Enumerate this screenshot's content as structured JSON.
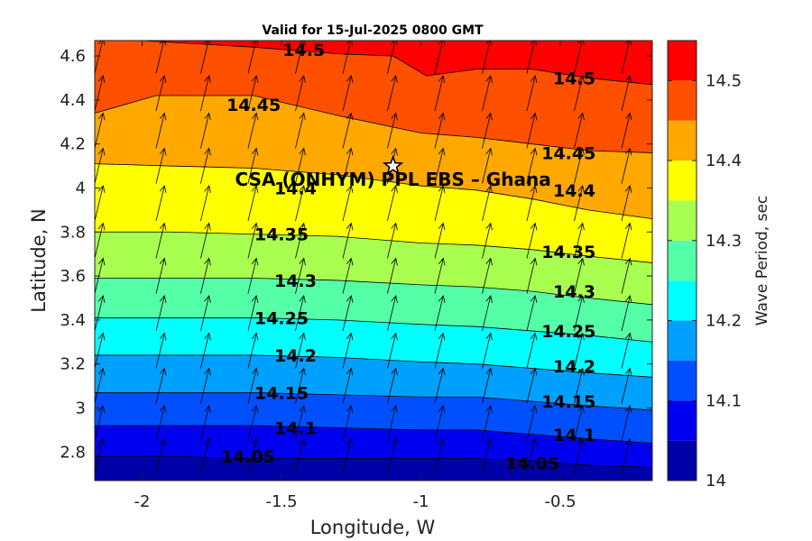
{
  "chart_data": {
    "type": "heatmap",
    "subtype": "filled-contour",
    "title": "Valid for 15-Jul-2025 0800 GMT",
    "xlabel": "Longitude, W",
    "ylabel": "Latitude, N",
    "xlim": [
      -2.17,
      -0.17
    ],
    "ylim": [
      2.67,
      4.67
    ],
    "x_ticks": [
      -2,
      -1.5,
      -1,
      -0.5
    ],
    "x_tick_labels": [
      "-2",
      "-1.5",
      "-1",
      "-0.5"
    ],
    "y_ticks": [
      2.8,
      3.0,
      3.2,
      3.4,
      3.6,
      3.8,
      4.0,
      4.2,
      4.4,
      4.6
    ],
    "y_tick_labels": [
      "2.8",
      "3",
      "3.2",
      "3.4",
      "3.6",
      "3.8",
      "4",
      "4.2",
      "4.4",
      "4.6"
    ],
    "colorbar": {
      "label": "Wave Period, sec",
      "range": [
        14.0,
        14.55
      ],
      "ticks": [
        14.0,
        14.1,
        14.2,
        14.3,
        14.4,
        14.5
      ],
      "tick_labels": [
        "14",
        "14.1",
        "14.2",
        "14.3",
        "14.4",
        "14.5"
      ],
      "levels": [
        14.0,
        14.05,
        14.1,
        14.15,
        14.2,
        14.25,
        14.3,
        14.35,
        14.4,
        14.45,
        14.5,
        14.55
      ],
      "colors": [
        "#0000a8",
        "#0000f0",
        "#0050ff",
        "#00a0ff",
        "#00ffff",
        "#55ffa8",
        "#a8ff50",
        "#ffff00",
        "#ffa800",
        "#ff5000",
        "#ff0000"
      ]
    },
    "contour_lines": [
      {
        "level": 14.05,
        "x": [
          -2.17,
          -1.9,
          -1.6,
          -1.3,
          -1.0,
          -0.8,
          -0.6,
          -0.4,
          -0.17
        ],
        "y": [
          2.78,
          2.78,
          2.77,
          2.77,
          2.77,
          2.77,
          2.76,
          2.74,
          2.73
        ]
      },
      {
        "level": 14.1,
        "x": [
          -2.17,
          -1.9,
          -1.6,
          -1.3,
          -1.0,
          -0.8,
          -0.6,
          -0.4,
          -0.17
        ],
        "y": [
          2.92,
          2.92,
          2.92,
          2.91,
          2.9,
          2.9,
          2.88,
          2.86,
          2.84
        ]
      },
      {
        "level": 14.15,
        "x": [
          -2.17,
          -1.9,
          -1.6,
          -1.3,
          -1.0,
          -0.8,
          -0.6,
          -0.4,
          -0.17
        ],
        "y": [
          3.07,
          3.07,
          3.07,
          3.06,
          3.05,
          3.05,
          3.03,
          3.01,
          2.99
        ]
      },
      {
        "level": 14.2,
        "x": [
          -2.17,
          -1.9,
          -1.6,
          -1.3,
          -1.0,
          -0.8,
          -0.6,
          -0.4,
          -0.17
        ],
        "y": [
          3.24,
          3.24,
          3.24,
          3.23,
          3.21,
          3.2,
          3.18,
          3.16,
          3.14
        ]
      },
      {
        "level": 14.25,
        "x": [
          -2.17,
          -1.9,
          -1.6,
          -1.3,
          -1.0,
          -0.8,
          -0.6,
          -0.4,
          -0.17
        ],
        "y": [
          3.41,
          3.41,
          3.41,
          3.4,
          3.38,
          3.37,
          3.35,
          3.33,
          3.3
        ]
      },
      {
        "level": 14.3,
        "x": [
          -2.17,
          -1.9,
          -1.6,
          -1.3,
          -1.0,
          -0.8,
          -0.6,
          -0.4,
          -0.17
        ],
        "y": [
          3.59,
          3.59,
          3.59,
          3.58,
          3.56,
          3.55,
          3.53,
          3.5,
          3.47
        ]
      },
      {
        "level": 14.35,
        "x": [
          -2.17,
          -1.9,
          -1.6,
          -1.3,
          -1.0,
          -0.8,
          -0.6,
          -0.4,
          -0.17
        ],
        "y": [
          3.8,
          3.8,
          3.79,
          3.78,
          3.75,
          3.74,
          3.72,
          3.69,
          3.66
        ]
      },
      {
        "level": 14.4,
        "x": [
          -2.17,
          -1.9,
          -1.6,
          -1.3,
          -1.0,
          -0.8,
          -0.6,
          -0.4,
          -0.17
        ],
        "y": [
          4.11,
          4.1,
          4.09,
          4.06,
          4.01,
          3.99,
          3.95,
          3.9,
          3.86
        ]
      },
      {
        "level": 14.45,
        "x": [
          -2.17,
          -1.95,
          -1.6,
          -1.3,
          -1.0,
          -0.8,
          -0.6,
          -0.4,
          -0.17
        ],
        "y": [
          4.34,
          4.42,
          4.42,
          4.33,
          4.25,
          4.23,
          4.2,
          4.17,
          4.16
        ]
      },
      {
        "level": 14.5,
        "x": [
          -2.0,
          -1.6,
          -1.3,
          -1.1,
          -0.98,
          -0.8,
          -0.6,
          -0.4,
          -0.17
        ],
        "y": [
          4.67,
          4.64,
          4.61,
          4.6,
          4.51,
          4.54,
          4.54,
          4.5,
          4.47
        ]
      }
    ],
    "contour_label_values": [
      "14.05",
      "14.1",
      "14.15",
      "14.2",
      "14.25",
      "14.3",
      "14.35",
      "14.4",
      "14.45",
      "14.5"
    ],
    "contour_labels": [
      {
        "text": "14.05",
        "x": -1.62,
        "y": 2.78
      },
      {
        "text": "14.05",
        "x": -0.6,
        "y": 2.75
      },
      {
        "text": "14.1",
        "x": -1.45,
        "y": 2.91
      },
      {
        "text": "14.1",
        "x": -0.45,
        "y": 2.88
      },
      {
        "text": "14.15",
        "x": -1.5,
        "y": 3.07
      },
      {
        "text": "14.15",
        "x": -0.47,
        "y": 3.03
      },
      {
        "text": "14.2",
        "x": -1.45,
        "y": 3.24
      },
      {
        "text": "14.2",
        "x": -0.45,
        "y": 3.19
      },
      {
        "text": "14.25",
        "x": -1.5,
        "y": 3.41
      },
      {
        "text": "14.25",
        "x": -0.47,
        "y": 3.35
      },
      {
        "text": "14.3",
        "x": -1.45,
        "y": 3.58
      },
      {
        "text": "14.3",
        "x": -0.45,
        "y": 3.53
      },
      {
        "text": "14.35",
        "x": -1.5,
        "y": 3.79
      },
      {
        "text": "14.35",
        "x": -0.47,
        "y": 3.71
      },
      {
        "text": "14.4",
        "x": -1.45,
        "y": 4.0
      },
      {
        "text": "14.4",
        "x": -0.45,
        "y": 3.99
      },
      {
        "text": "14.45",
        "x": -1.6,
        "y": 4.38
      },
      {
        "text": "14.45",
        "x": -0.47,
        "y": 4.16
      },
      {
        "text": "14.5",
        "x": -1.42,
        "y": 4.63
      },
      {
        "text": "14.5",
        "x": -0.45,
        "y": 4.5
      }
    ],
    "vector_field": {
      "description": "Wave direction arrows, pointing roughly north-northeast",
      "x": [
        -2.17,
        -1.95,
        -1.79,
        -1.62,
        -1.45,
        -1.28,
        -1.12,
        -0.95,
        -0.78,
        -0.62,
        -0.45,
        -0.28
      ],
      "y": [
        2.7,
        2.85,
        3.02,
        3.18,
        3.35,
        3.52,
        3.68,
        3.85,
        4.02,
        4.18,
        4.35,
        4.52
      ],
      "dx": 0.03,
      "dy": 0.16
    },
    "site": {
      "label": "CSA (ONHYM) PPL EBS  – Ghana",
      "x": -1.1,
      "y": 4.1,
      "marker": "star"
    }
  }
}
